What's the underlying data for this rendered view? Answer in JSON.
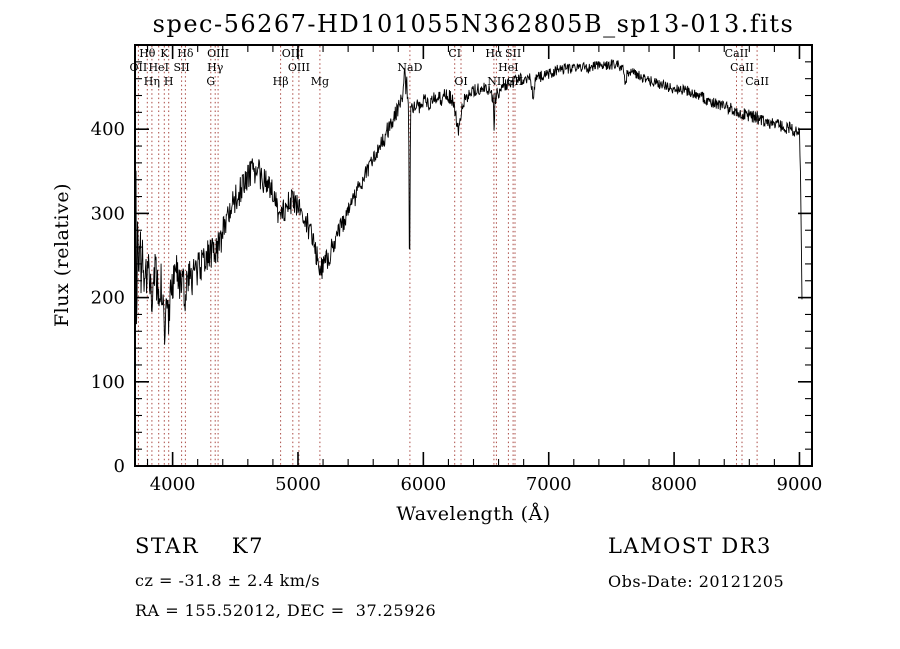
{
  "chart_data": {
    "type": "line",
    "title": "spec-56267-HD101055N362805B_sp13-013.fits",
    "xlabel": "Wavelength (Å)",
    "ylabel": "Flux (relative)",
    "xlim": [
      3700,
      9100
    ],
    "ylim": [
      0,
      500
    ],
    "x_ticks": [
      4000,
      5000,
      6000,
      7000,
      8000,
      9000
    ],
    "x_minor_step": 200,
    "y_ticks": [
      0,
      100,
      200,
      300,
      400
    ],
    "y_minor_step": 20,
    "grid": false,
    "legend": "none",
    "line_color": "#000000",
    "marker_color": "#aa4a44",
    "series": [
      {
        "name": "flux",
        "anchors": [
          [
            3700,
            270
          ],
          [
            3706,
            268
          ],
          [
            3712,
            262
          ],
          [
            3720,
            255
          ],
          [
            3735,
            248
          ],
          [
            3750,
            242
          ],
          [
            3770,
            236
          ],
          [
            3790,
            232
          ],
          [
            3812,
            230
          ],
          [
            3830,
            222
          ],
          [
            3835,
            200
          ],
          [
            3842,
            220
          ],
          [
            3850,
            226
          ],
          [
            3870,
            224
          ],
          [
            3889,
            205
          ],
          [
            3905,
            222
          ],
          [
            3928,
            195
          ],
          [
            3934,
            132
          ],
          [
            3942,
            198
          ],
          [
            3958,
            210
          ],
          [
            3969,
            162
          ],
          [
            3980,
            208
          ],
          [
            4000,
            222
          ],
          [
            4025,
            226
          ],
          [
            4050,
            222
          ],
          [
            4072,
            205
          ],
          [
            4088,
            215
          ],
          [
            4101,
            172
          ],
          [
            4114,
            215
          ],
          [
            4140,
            222
          ],
          [
            4170,
            228
          ],
          [
            4200,
            234
          ],
          [
            4240,
            244
          ],
          [
            4280,
            252
          ],
          [
            4305,
            250
          ],
          [
            4325,
            256
          ],
          [
            4340,
            246
          ],
          [
            4355,
            260
          ],
          [
            4370,
            266
          ],
          [
            4420,
            284
          ],
          [
            4470,
            304
          ],
          [
            4520,
            322
          ],
          [
            4570,
            338
          ],
          [
            4620,
            350
          ],
          [
            4660,
            352
          ],
          [
            4700,
            346
          ],
          [
            4740,
            338
          ],
          [
            4780,
            328
          ],
          [
            4820,
            315
          ],
          [
            4855,
            295
          ],
          [
            4861,
            288
          ],
          [
            4875,
            302
          ],
          [
            4910,
            310
          ],
          [
            4950,
            316
          ],
          [
            4990,
            312
          ],
          [
            5030,
            302
          ],
          [
            5070,
            290
          ],
          [
            5110,
            272
          ],
          [
            5150,
            250
          ],
          [
            5175,
            232
          ],
          [
            5200,
            236
          ],
          [
            5235,
            246
          ],
          [
            5270,
            258
          ],
          [
            5310,
            272
          ],
          [
            5355,
            288
          ],
          [
            5400,
            302
          ],
          [
            5450,
            318
          ],
          [
            5500,
            334
          ],
          [
            5550,
            350
          ],
          [
            5605,
            366
          ],
          [
            5660,
            382
          ],
          [
            5715,
            398
          ],
          [
            5770,
            414
          ],
          [
            5815,
            430
          ],
          [
            5845,
            448
          ],
          [
            5852,
            480
          ],
          [
            5858,
            446
          ],
          [
            5865,
            464
          ],
          [
            5872,
            440
          ],
          [
            5882,
            432
          ],
          [
            5890,
            208
          ],
          [
            5898,
            424
          ],
          [
            5925,
            430
          ],
          [
            5960,
            426
          ],
          [
            6000,
            434
          ],
          [
            6045,
            430
          ],
          [
            6090,
            438
          ],
          [
            6140,
            436
          ],
          [
            6190,
            442
          ],
          [
            6240,
            432
          ],
          [
            6280,
            398
          ],
          [
            6302,
            420
          ],
          [
            6330,
            436
          ],
          [
            6380,
            443
          ],
          [
            6430,
            448
          ],
          [
            6480,
            450
          ],
          [
            6530,
            447
          ],
          [
            6556,
            435
          ],
          [
            6563,
            402
          ],
          [
            6572,
            436
          ],
          [
            6600,
            445
          ],
          [
            6650,
            452
          ],
          [
            6700,
            456
          ],
          [
            6750,
            458
          ],
          [
            6800,
            460
          ],
          [
            6855,
            462
          ],
          [
            6875,
            436
          ],
          [
            6892,
            460
          ],
          [
            6950,
            463
          ],
          [
            7010,
            467
          ],
          [
            7070,
            470
          ],
          [
            7130,
            472
          ],
          [
            7190,
            471
          ],
          [
            7250,
            474
          ],
          [
            7310,
            472
          ],
          [
            7370,
            475
          ],
          [
            7430,
            474
          ],
          [
            7490,
            477
          ],
          [
            7550,
            476
          ],
          [
            7595,
            472
          ],
          [
            7610,
            452
          ],
          [
            7628,
            468
          ],
          [
            7680,
            467
          ],
          [
            7740,
            462
          ],
          [
            7800,
            458
          ],
          [
            7860,
            455
          ],
          [
            7920,
            452
          ],
          [
            7980,
            448
          ],
          [
            8040,
            448
          ],
          [
            8100,
            446
          ],
          [
            8160,
            442
          ],
          [
            8220,
            438
          ],
          [
            8280,
            434
          ],
          [
            8340,
            430
          ],
          [
            8400,
            427
          ],
          [
            8460,
            424
          ],
          [
            8520,
            420
          ],
          [
            8580,
            417
          ],
          [
            8640,
            414
          ],
          [
            8700,
            411
          ],
          [
            8760,
            408
          ],
          [
            8820,
            405
          ],
          [
            8880,
            403
          ],
          [
            8930,
            400
          ],
          [
            8970,
            398
          ],
          [
            9000,
            394
          ],
          [
            9008,
            356
          ],
          [
            9015,
            262
          ],
          [
            9022,
            172
          ]
        ]
      }
    ],
    "noise": {
      "seed": 1205,
      "step": 4,
      "amp_anchors": [
        [
          3700,
          150
        ],
        [
          3712,
          100
        ],
        [
          3725,
          60
        ],
        [
          3745,
          42
        ],
        [
          3780,
          32
        ],
        [
          3850,
          28
        ],
        [
          3950,
          27
        ],
        [
          4050,
          26
        ],
        [
          4150,
          24
        ],
        [
          4300,
          21
        ],
        [
          4450,
          19
        ],
        [
          4600,
          18
        ],
        [
          4800,
          17
        ],
        [
          5000,
          16
        ],
        [
          5150,
          14
        ],
        [
          5350,
          12
        ],
        [
          5550,
          11
        ],
        [
          5750,
          11
        ],
        [
          5900,
          10
        ],
        [
          6100,
          9
        ],
        [
          6300,
          8
        ],
        [
          6600,
          8
        ],
        [
          6900,
          7
        ],
        [
          7200,
          6
        ],
        [
          7600,
          6
        ],
        [
          8000,
          6
        ],
        [
          8400,
          7
        ],
        [
          8800,
          8
        ],
        [
          9030,
          8
        ]
      ]
    },
    "line_markers": [
      {
        "label": "Hθ",
        "wl": 3798,
        "row": 0
      },
      {
        "label": "K",
        "wl": 3934,
        "row": 0
      },
      {
        "label": "Hδ",
        "wl": 4102,
        "row": 0
      },
      {
        "label": "OII",
        "wl": 3727,
        "row": 1
      },
      {
        "label": "HeI",
        "wl": 3889,
        "row": 1
      },
      {
        "label": "SII",
        "wl": 4072,
        "row": 1
      },
      {
        "label": "Hη",
        "wl": 3835,
        "row": 2
      },
      {
        "label": "H",
        "wl": 3969,
        "row": 2
      },
      {
        "label": "OIII",
        "wl": 4363,
        "row": 0
      },
      {
        "label": "Hγ",
        "wl": 4340,
        "row": 1
      },
      {
        "label": "G",
        "wl": 4305,
        "row": 2
      },
      {
        "label": "OIII",
        "wl": 4959,
        "row": 0
      },
      {
        "label": "OIII",
        "wl": 5007,
        "row": 1
      },
      {
        "label": "Hβ",
        "wl": 4861,
        "row": 2
      },
      {
        "label": "Mg",
        "wl": 5175,
        "row": 2
      },
      {
        "label": "NaD",
        "wl": 5893,
        "row": 1
      },
      {
        "label": "CI",
        "wl": 6250,
        "row": 0
      },
      {
        "label": "OI",
        "wl": 6300,
        "row": 2
      },
      {
        "label": "Hα",
        "wl": 6563,
        "row": 0
      },
      {
        "label": "HeI",
        "wl": 6678,
        "row": 1
      },
      {
        "label": "NII",
        "wl": 6583,
        "row": 2
      },
      {
        "label": "SII",
        "wl": 6716,
        "row": 0
      },
      {
        "label": "SII",
        "wl": 6731,
        "row": 2
      },
      {
        "label": "CaII",
        "wl": 8498,
        "row": 0
      },
      {
        "label": "CaII",
        "wl": 8542,
        "row": 1
      },
      {
        "label": "CaII",
        "wl": 8662,
        "row": 2
      }
    ]
  },
  "footer": {
    "class_line": "STAR    K7",
    "cz_line": "cz = -31.8 ± 2.4 km/s",
    "radec_line": "RA = 155.52012, DEC =  37.25926",
    "survey": "LAMOST DR3",
    "obs_date": "Obs-Date: 20121205"
  }
}
